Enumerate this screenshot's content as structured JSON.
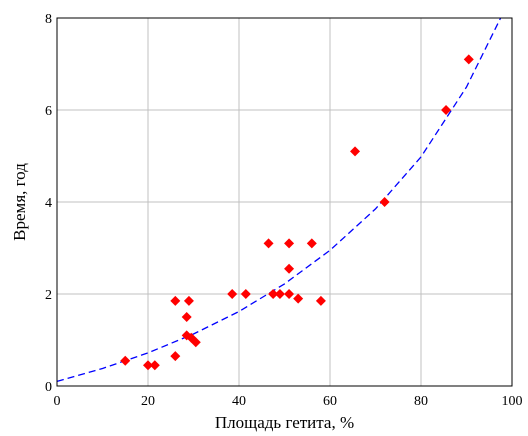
{
  "chart_data": {
    "type": "scatter",
    "xlabel": "Площадь гетита, %",
    "ylabel": "Время, год",
    "xlim": [
      0,
      100
    ],
    "ylim": [
      0,
      8
    ],
    "x_ticks": [
      "0",
      "20",
      "40",
      "60",
      "80",
      "100"
    ],
    "y_ticks": [
      "0",
      "2",
      "4",
      "6",
      "8"
    ],
    "grid": true,
    "legend": "none",
    "colors": {
      "points": "#ff0000",
      "fit": "#0000ff",
      "grid": "#c0c0c0",
      "frame": "#000000"
    },
    "series": [
      {
        "kind": "points",
        "marker": "diamond",
        "x": [
          15,
          20,
          21.5,
          26,
          26,
          28.5,
          28.5,
          29,
          29.5,
          30.5,
          38.5,
          41.5,
          46.5,
          47.5,
          49,
          51,
          51,
          51,
          53,
          56,
          58,
          65.5,
          72,
          85.5,
          90.5
        ],
        "y": [
          0.55,
          0.45,
          0.45,
          0.65,
          1.85,
          1.5,
          1.1,
          1.85,
          1.05,
          0.95,
          2.0,
          2.0,
          3.1,
          2.0,
          2.0,
          3.1,
          2.55,
          2.0,
          1.9,
          3.1,
          1.85,
          5.1,
          4.0,
          6.0,
          7.1
        ]
      },
      {
        "kind": "fit",
        "line": "dashed",
        "x": [
          0,
          10,
          20,
          30,
          40,
          50,
          60,
          70,
          80,
          90,
          97.5
        ],
        "y": [
          0.1,
          0.38,
          0.72,
          1.13,
          1.62,
          2.22,
          2.95,
          3.85,
          4.98,
          6.5,
          8.0
        ]
      }
    ]
  }
}
